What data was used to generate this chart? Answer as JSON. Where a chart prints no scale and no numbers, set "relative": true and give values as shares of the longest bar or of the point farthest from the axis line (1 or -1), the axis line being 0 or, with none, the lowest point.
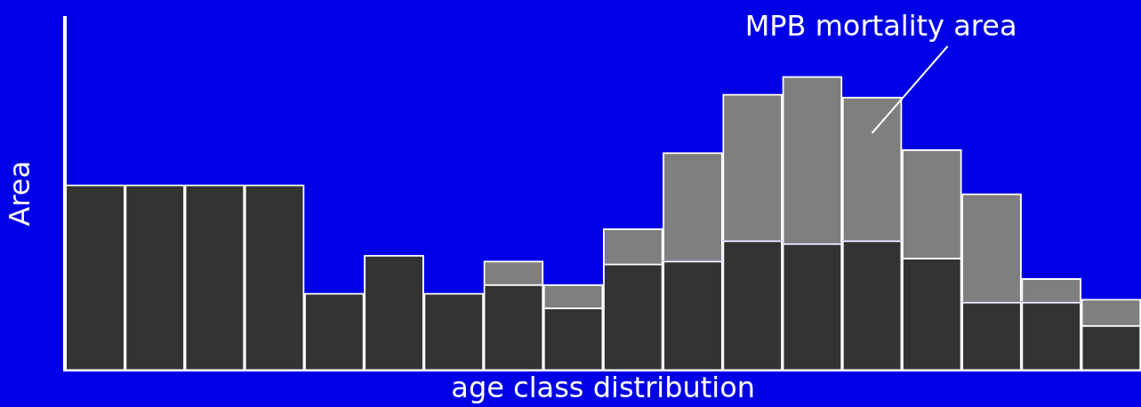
{
  "chart_data": {
    "type": "bar",
    "stacked": true,
    "relative": true,
    "xlabel": "age class distribution",
    "ylabel": "Area",
    "grid": false,
    "legend": false,
    "categories": [
      null,
      null,
      null,
      null,
      null,
      null,
      null,
      null,
      null,
      null,
      null,
      null,
      null,
      null,
      null,
      null,
      null,
      null
    ],
    "series": [
      {
        "color": "#333333",
        "values": [
          0.63,
          0.63,
          0.63,
          0.63,
          0.26,
          0.39,
          0.26,
          0.29,
          0.21,
          0.36,
          0.37,
          0.44,
          0.43,
          0.44,
          0.38,
          0.23,
          0.23,
          0.15
        ]
      },
      {
        "name": "MPB mortality area",
        "color": "#7f7f7f",
        "values": [
          0,
          0,
          0,
          0,
          0,
          0,
          0,
          0.08,
          0.08,
          0.12,
          0.37,
          0.5,
          0.57,
          0.49,
          0.37,
          0.37,
          0.08,
          0.09
        ]
      }
    ]
  }
}
